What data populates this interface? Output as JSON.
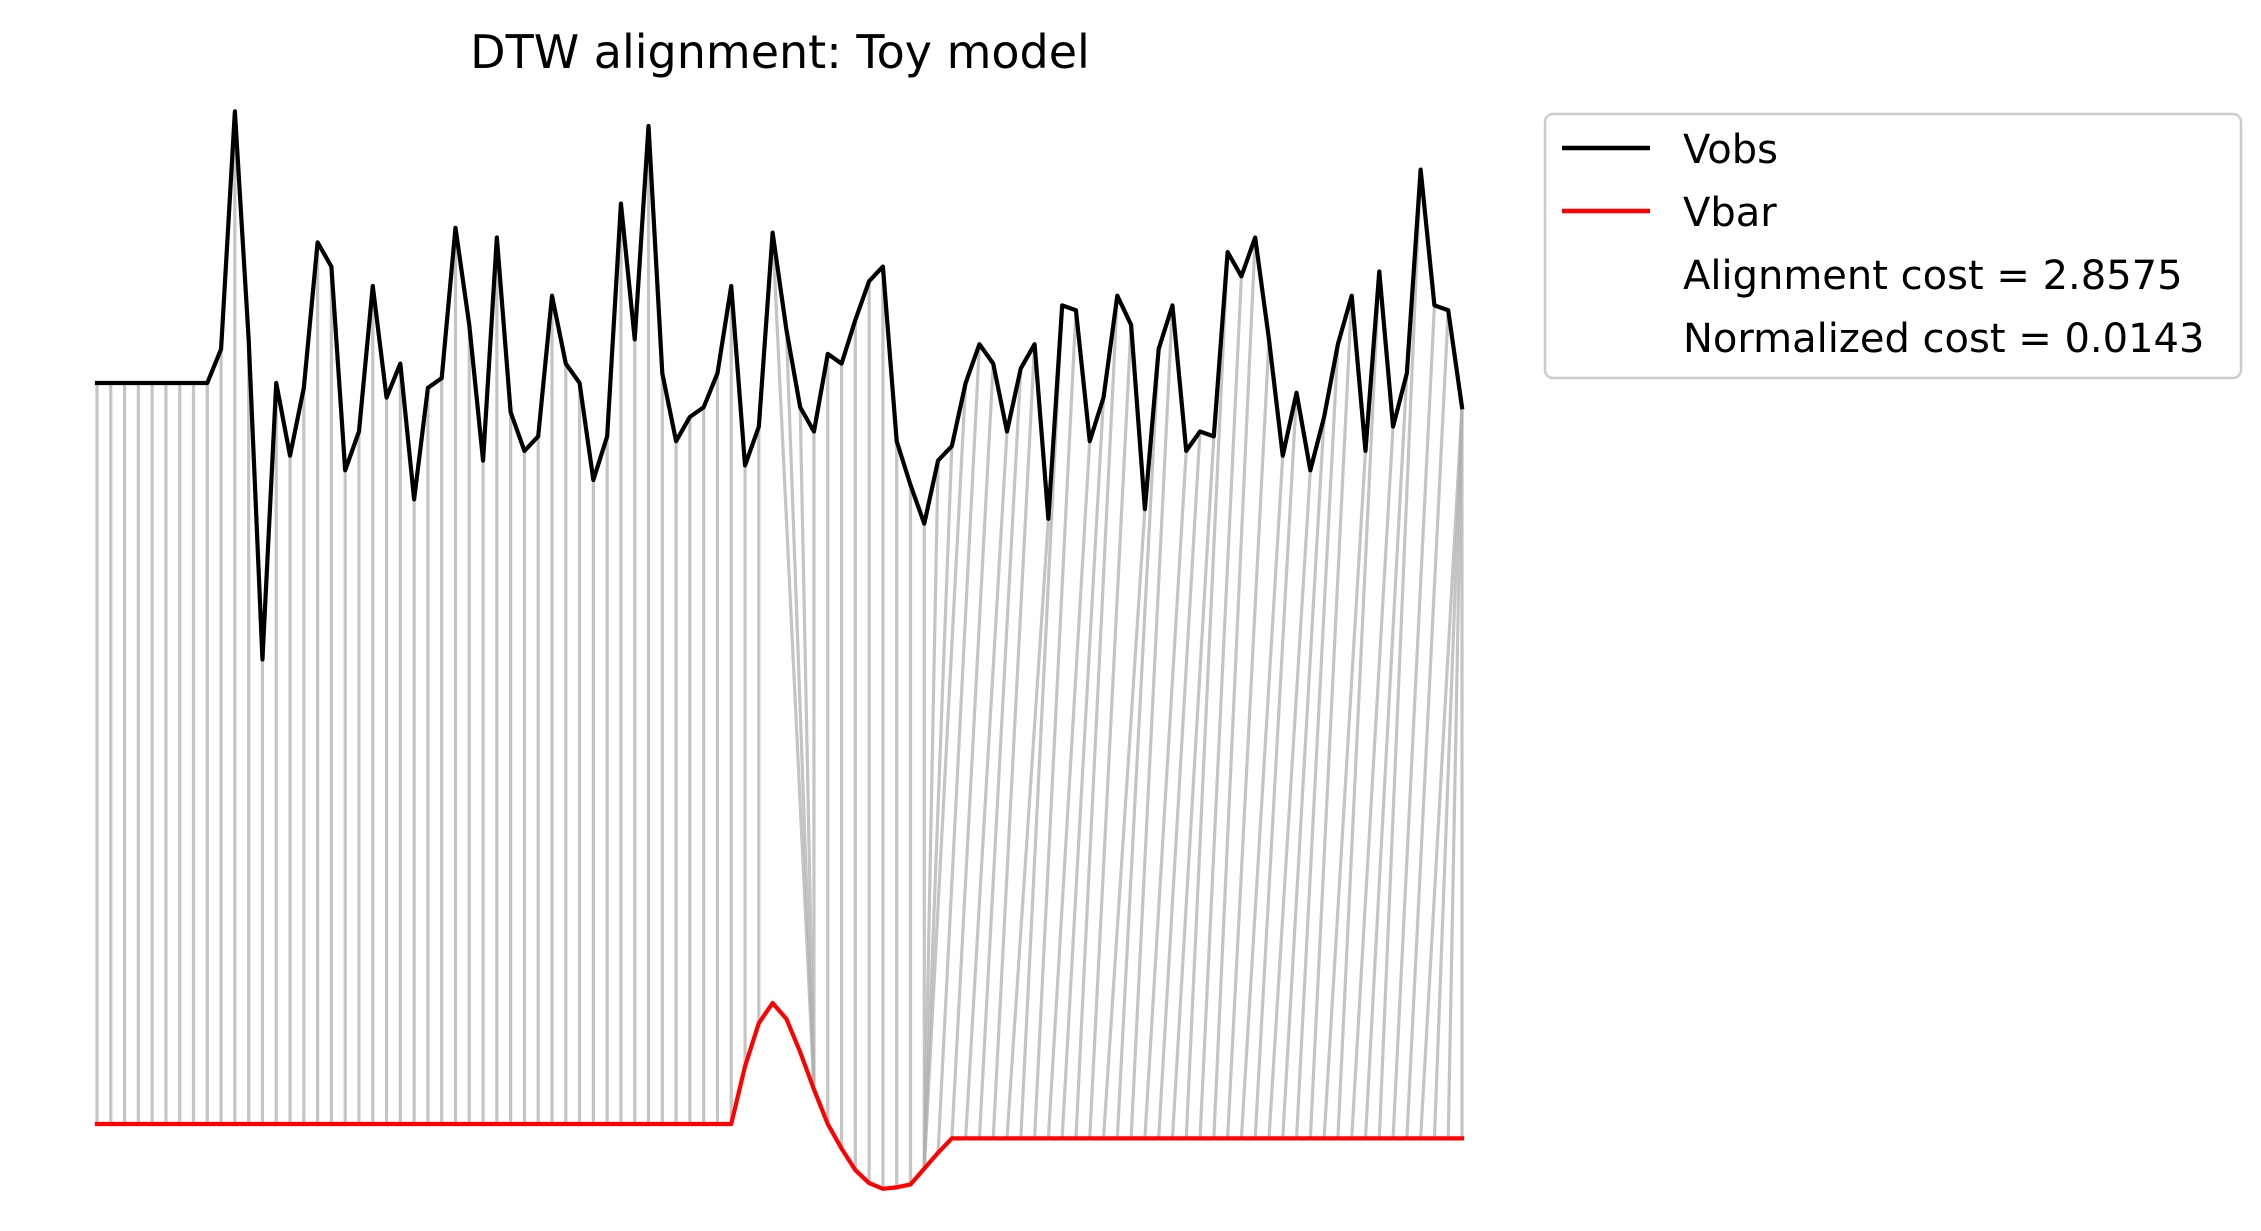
{
  "chart_data": {
    "type": "line",
    "title": "DTW alignment: Toy model",
    "xlabel": "",
    "ylabel": "",
    "axes_visible": false,
    "grid": false,
    "legend_position": "outside-top-right",
    "colors": {
      "Vobs": "#000000",
      "Vbar": "#ff0000",
      "alignment_lines": "#b0b0b0"
    },
    "series": [
      {
        "name": "Vobs",
        "x": [
          0,
          1,
          2,
          3,
          4,
          5,
          6,
          7,
          8,
          9,
          10,
          11,
          12,
          13,
          14,
          15,
          16,
          17,
          18,
          19,
          20,
          21,
          22,
          23,
          24,
          25,
          26,
          27,
          28,
          29,
          30,
          31,
          32,
          33,
          34,
          35,
          36,
          37,
          38,
          39,
          40,
          41,
          42,
          43,
          44,
          45,
          46,
          47,
          48,
          49,
          50,
          51,
          52,
          53,
          54,
          55,
          56,
          57,
          58,
          59,
          60,
          61,
          62,
          63,
          64,
          65,
          66,
          67,
          68,
          69,
          70,
          71,
          72,
          73,
          74,
          75,
          76,
          77,
          78,
          79,
          80,
          81,
          82,
          83,
          84,
          85,
          86,
          87,
          88,
          89,
          90,
          91,
          92,
          93,
          94,
          95,
          96,
          97,
          98,
          99
        ],
        "values": [
          0,
          0,
          0,
          0,
          0,
          0,
          0,
          0,
          0,
          0.07,
          0.56,
          0.09,
          -0.57,
          0,
          -0.15,
          -0.01,
          0.29,
          0.24,
          -0.18,
          -0.1,
          0.2,
          -0.03,
          0.04,
          -0.24,
          -0.01,
          0.01,
          0.32,
          0.12,
          -0.16,
          0.3,
          -0.06,
          -0.14,
          -0.11,
          0.18,
          0.04,
          0,
          -0.2,
          -0.11,
          0.37,
          0.09,
          0.53,
          0.02,
          -0.12,
          -0.07,
          -0.05,
          0.02,
          0.2,
          -0.17,
          -0.09,
          0.31,
          0.11,
          -0.05,
          -0.1,
          0.06,
          0.04,
          0.13,
          0.21,
          0.24,
          -0.12,
          -0.21,
          -0.29,
          -0.16,
          -0.13,
          0,
          0.08,
          0.04,
          -0.1,
          0.03,
          0.08,
          -0.28,
          0.16,
          0.15,
          -0.12,
          -0.03,
          0.18,
          0.12,
          -0.26,
          0.07,
          0.16,
          -0.14,
          -0.1,
          -0.11,
          0.27,
          0.22,
          0.3,
          0.09,
          -0.15,
          -0.02,
          -0.18,
          -0.07,
          0.08,
          0.18,
          -0.14,
          0.23,
          -0.09,
          0.02,
          0.44,
          0.16,
          0.15,
          -0.05
        ]
      },
      {
        "name": "Vbar",
        "x": [
          0,
          46,
          47,
          48,
          49,
          50,
          51,
          52,
          53,
          54,
          55,
          56,
          57,
          58,
          59,
          60,
          61,
          62,
          99
        ],
        "values": [
          0,
          0,
          0.4,
          0.7,
          0.84,
          0.73,
          0.5,
          0.24,
          0,
          -0.17,
          -0.32,
          -0.41,
          -0.45,
          -0.44,
          -0.42,
          -0.31,
          -0.2,
          -0.1,
          -0.1
        ]
      }
    ],
    "alignment_path": [
      [
        0,
        0
      ],
      [
        1,
        1
      ],
      [
        2,
        2
      ],
      [
        3,
        3
      ],
      [
        4,
        4
      ],
      [
        5,
        5
      ],
      [
        6,
        6
      ],
      [
        7,
        7
      ],
      [
        8,
        8
      ],
      [
        9,
        9
      ],
      [
        10,
        10
      ],
      [
        11,
        11
      ],
      [
        12,
        12
      ],
      [
        13,
        13
      ],
      [
        14,
        14
      ],
      [
        15,
        15
      ],
      [
        16,
        16
      ],
      [
        17,
        17
      ],
      [
        18,
        18
      ],
      [
        19,
        19
      ],
      [
        20,
        20
      ],
      [
        21,
        21
      ],
      [
        22,
        22
      ],
      [
        23,
        23
      ],
      [
        24,
        24
      ],
      [
        25,
        25
      ],
      [
        26,
        26
      ],
      [
        27,
        27
      ],
      [
        28,
        28
      ],
      [
        29,
        29
      ],
      [
        30,
        30
      ],
      [
        31,
        31
      ],
      [
        32,
        32
      ],
      [
        33,
        33
      ],
      [
        34,
        34
      ],
      [
        35,
        35
      ],
      [
        36,
        36
      ],
      [
        37,
        37
      ],
      [
        38,
        38
      ],
      [
        39,
        39
      ],
      [
        40,
        40
      ],
      [
        41,
        41
      ],
      [
        42,
        42
      ],
      [
        43,
        43
      ],
      [
        44,
        44
      ],
      [
        45,
        45
      ],
      [
        46,
        46
      ],
      [
        47,
        47
      ],
      [
        48,
        48
      ],
      [
        49,
        52
      ],
      [
        50,
        52
      ],
      [
        51,
        52
      ],
      [
        52,
        52
      ],
      [
        53,
        53
      ],
      [
        54,
        54
      ],
      [
        55,
        55
      ],
      [
        56,
        56
      ],
      [
        57,
        57
      ],
      [
        58,
        58
      ],
      [
        59,
        59
      ],
      [
        60,
        60
      ],
      [
        61,
        60
      ],
      [
        62,
        60
      ],
      [
        63,
        60
      ],
      [
        64,
        61
      ],
      [
        65,
        62
      ],
      [
        66,
        63
      ],
      [
        67,
        64
      ],
      [
        68,
        65
      ],
      [
        69,
        66
      ],
      [
        70,
        67
      ],
      [
        71,
        68
      ],
      [
        72,
        69
      ],
      [
        73,
        70
      ],
      [
        74,
        71
      ],
      [
        75,
        72
      ],
      [
        76,
        73
      ],
      [
        77,
        74
      ],
      [
        78,
        75
      ],
      [
        79,
        76
      ],
      [
        80,
        77
      ],
      [
        81,
        78
      ],
      [
        82,
        79
      ],
      [
        83,
        80
      ],
      [
        84,
        81
      ],
      [
        85,
        82
      ],
      [
        86,
        83
      ],
      [
        87,
        84
      ],
      [
        88,
        85
      ],
      [
        89,
        86
      ],
      [
        90,
        87
      ],
      [
        91,
        88
      ],
      [
        92,
        89
      ],
      [
        93,
        90
      ],
      [
        94,
        91
      ],
      [
        95,
        92
      ],
      [
        96,
        93
      ],
      [
        97,
        94
      ],
      [
        98,
        95
      ],
      [
        99,
        96
      ],
      [
        99,
        97
      ],
      [
        99,
        98
      ],
      [
        99,
        99
      ]
    ],
    "legend": [
      {
        "label": "Vobs",
        "color": "#000000",
        "swatch": "line"
      },
      {
        "label": "Vbar",
        "color": "#ff0000",
        "swatch": "line"
      },
      {
        "label": "Alignment cost = 2.8575",
        "swatch": "none"
      },
      {
        "label": "Normalized cost = 0.0143",
        "swatch": "none"
      }
    ]
  }
}
